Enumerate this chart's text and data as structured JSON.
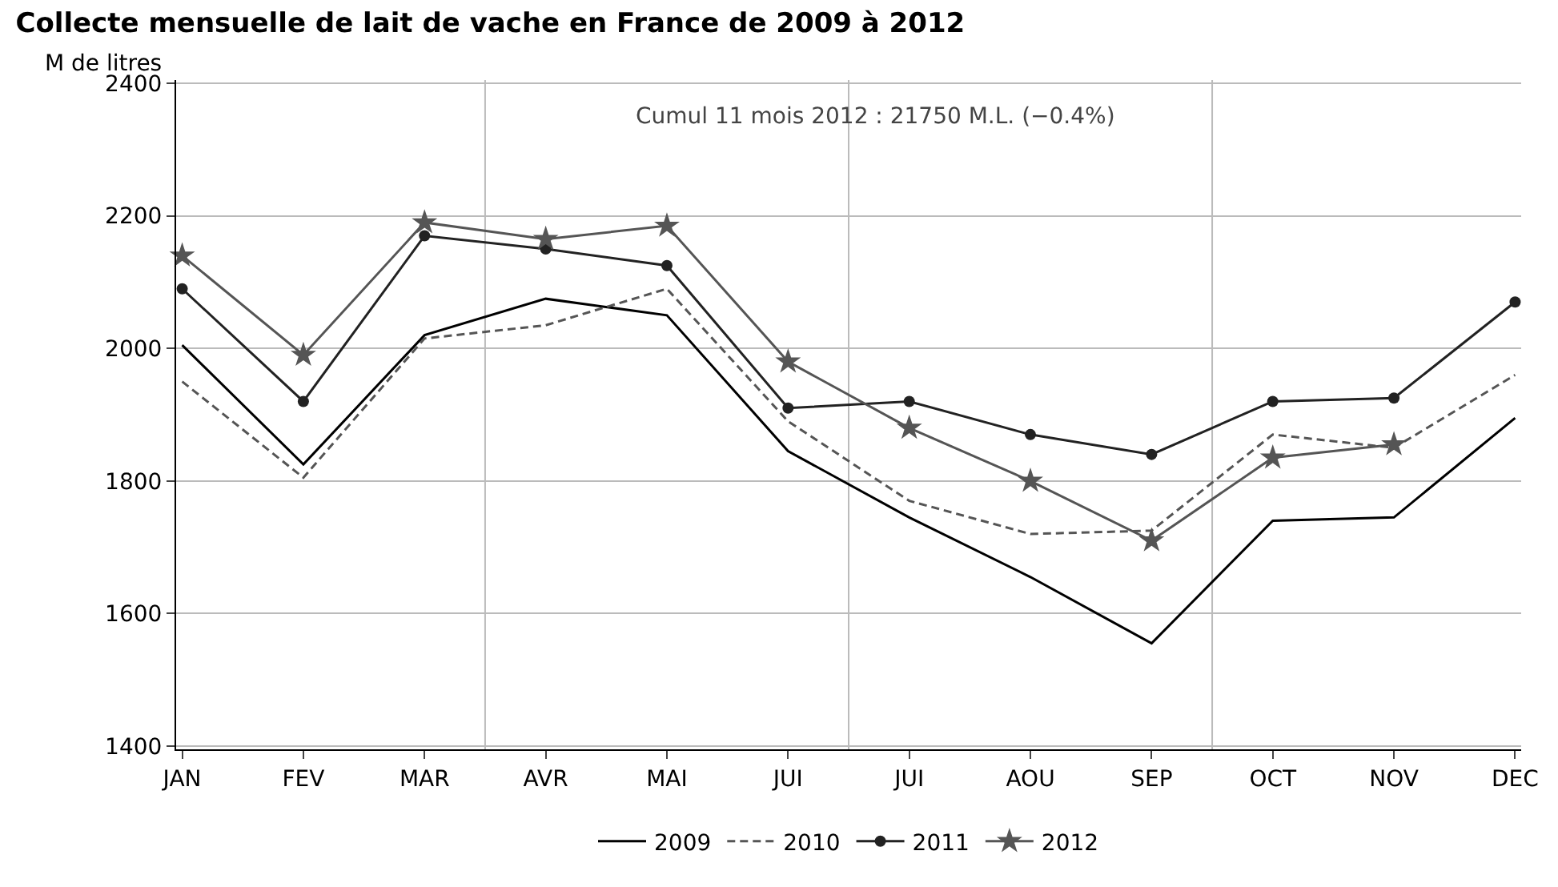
{
  "chart_data": {
    "type": "line",
    "title": "Collecte mensuelle de lait de vache en France de 2009 à 2012",
    "ylabel": "M de litres",
    "categories": [
      "JAN",
      "FEV",
      "MAR",
      "AVR",
      "MAI",
      "JUI",
      "JUI",
      "AOU",
      "SEP",
      "OCT",
      "NOV",
      "DEC"
    ],
    "series": [
      {
        "name": "2009",
        "color": "#000000",
        "line_style": "solid",
        "marker": "none",
        "values": [
          2005,
          1825,
          2020,
          2075,
          2050,
          1845,
          1745,
          1655,
          1555,
          1740,
          1745,
          1895
        ]
      },
      {
        "name": "2010",
        "color": "#555555",
        "line_style": "dashed",
        "marker": "none",
        "values": [
          1950,
          1805,
          2015,
          2035,
          2090,
          1890,
          1770,
          1720,
          1725,
          1870,
          1850,
          1960
        ]
      },
      {
        "name": "2011",
        "color": "#222222",
        "line_style": "solid",
        "marker": "circle",
        "values": [
          2090,
          1920,
          2170,
          2150,
          2125,
          1910,
          1920,
          1870,
          1840,
          1920,
          1925,
          2070
        ]
      },
      {
        "name": "2012",
        "color": "#555555",
        "line_style": "solid",
        "marker": "star",
        "values": [
          2140,
          1990,
          2190,
          2165,
          2185,
          1980,
          1880,
          1800,
          1710,
          1835,
          1855,
          null
        ]
      }
    ],
    "ylim": [
      1395,
      2405
    ],
    "yticks": [
      1400,
      1600,
      1800,
      2000,
      2200,
      2400
    ],
    "grid": "y",
    "legend": "bottom",
    "annotations": [
      "Cumul 11 mois 2012 : 21750 M.L. (−0.4%)"
    ]
  }
}
